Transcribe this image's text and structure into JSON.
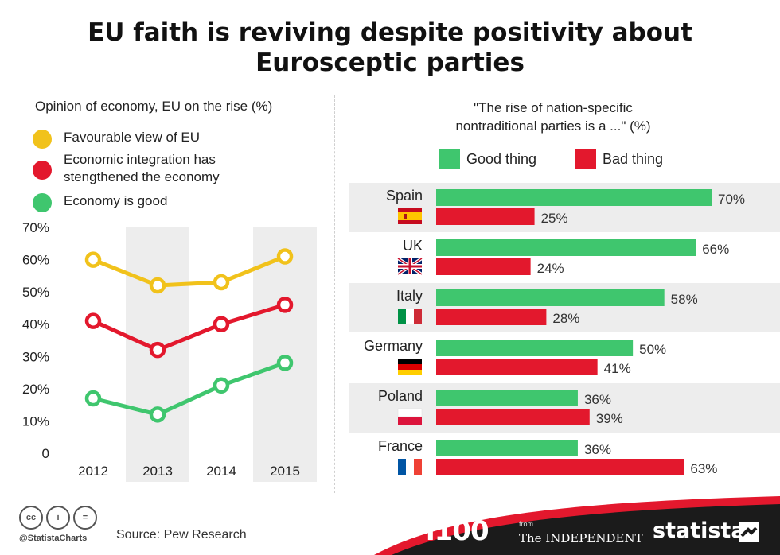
{
  "title": {
    "line1": "EU faith is reviving despite positivity about",
    "line2": "Eurosceptic parties"
  },
  "colors": {
    "yellow": "#F1C21B",
    "red": "#E3182D",
    "green": "#3FC66E",
    "band": "#EDEDED",
    "dark": "#1b1b1b"
  },
  "left_panel": {
    "subtitle": "Opinion of economy, EU on the rise (%)",
    "legend": [
      {
        "label": "Favourable view of EU",
        "color": "#F1C21B"
      },
      {
        "label": "Economic integration has\nstengthened the economy",
        "color": "#E3182D"
      },
      {
        "label": "Economy is good",
        "color": "#3FC66E"
      }
    ]
  },
  "right_panel": {
    "subtitle_line1": "\"The rise of nation-specific",
    "subtitle_line2": "nontraditional parties is a ...\" (%)",
    "legend": [
      {
        "label": "Good thing",
        "color": "#3FC66E"
      },
      {
        "label": "Bad thing",
        "color": "#E3182D"
      }
    ]
  },
  "chart_data": [
    {
      "type": "line",
      "title": "Opinion of economy, EU on the rise (%)",
      "x": [
        "2012",
        "2013",
        "2014",
        "2015"
      ],
      "ylim": [
        0,
        70
      ],
      "yticks": [
        "0",
        "10%",
        "20%",
        "30%",
        "40%",
        "50%",
        "60%",
        "70%"
      ],
      "grid": false,
      "series": [
        {
          "name": "Favourable view of EU",
          "color": "#F1C21B",
          "values": [
            60,
            52,
            53,
            61
          ]
        },
        {
          "name": "Economic integration has stengthened the economy",
          "color": "#E3182D",
          "values": [
            41,
            32,
            40,
            46
          ]
        },
        {
          "name": "Economy is good",
          "color": "#3FC66E",
          "values": [
            17,
            12,
            21,
            28
          ]
        }
      ]
    },
    {
      "type": "bar",
      "orientation": "horizontal",
      "title": "\"The rise of nation-specific nontraditional parties is a ...\" (%)",
      "categories": [
        "Spain",
        "UK",
        "Italy",
        "Germany",
        "Poland",
        "France"
      ],
      "xlim": [
        0,
        100
      ],
      "series": [
        {
          "name": "Good thing",
          "color": "#3FC66E",
          "values": [
            70,
            66,
            58,
            50,
            36,
            36
          ],
          "labels": [
            "70%",
            "66%",
            "58%",
            "50%",
            "36%",
            "36%"
          ]
        },
        {
          "name": "Bad thing",
          "color": "#E3182D",
          "values": [
            25,
            24,
            28,
            41,
            39,
            63
          ],
          "labels": [
            "25%",
            "24%",
            "28%",
            "41%",
            "39%",
            "63%"
          ]
        }
      ],
      "flags": [
        "spain-flag",
        "uk-flag",
        "italy-flag",
        "germany-flag",
        "poland-flag",
        "france-flag"
      ]
    }
  ],
  "footer": {
    "cc_icons": [
      "cc-icon",
      "by-icon",
      "nd-icon"
    ],
    "cc_glyphs": [
      "cc",
      "i",
      "="
    ],
    "handle": "@StatistaCharts",
    "source": "Source: Pew Research",
    "i100": "i100",
    "from": "from",
    "independent": "The INDEPENDENT",
    "statista": "statista"
  }
}
